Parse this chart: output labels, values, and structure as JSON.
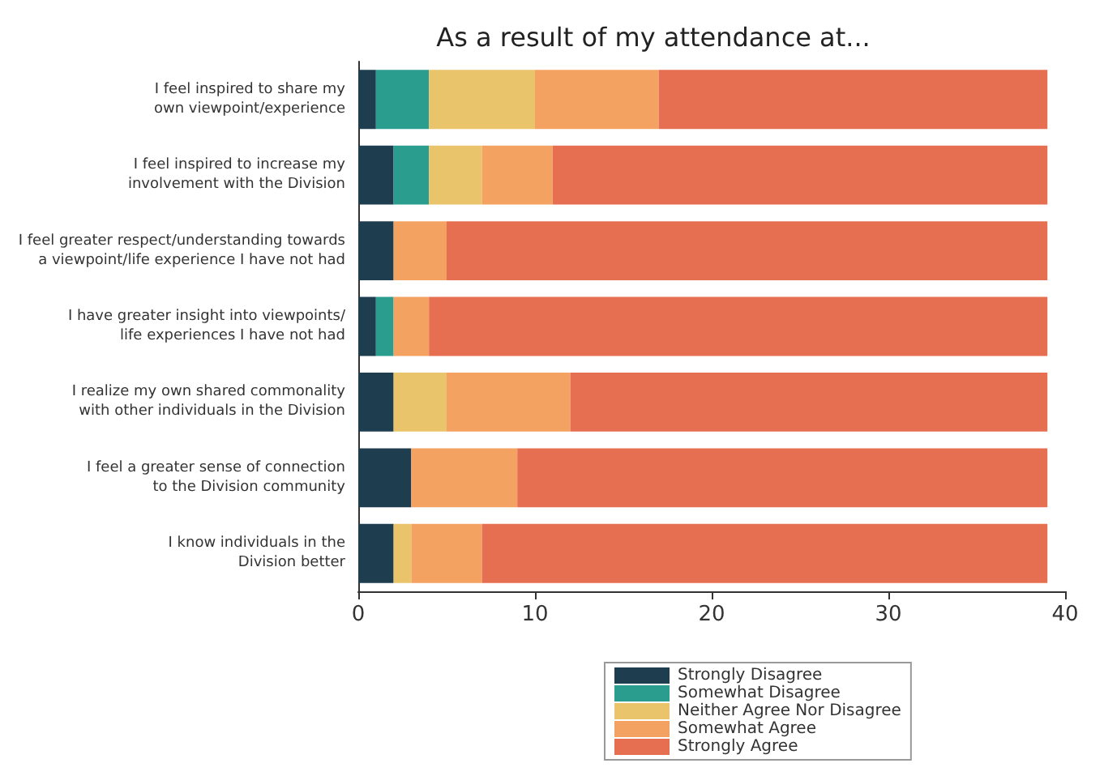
{
  "chart_data": {
    "type": "bar",
    "orientation": "horizontal",
    "stacked": true,
    "title": "As a result of my attendance at...",
    "categories": [
      "I feel inspired to share my\nown viewpoint/experience",
      "I feel inspired to increase my\ninvolvement with the Division",
      "I feel greater respect/understanding towards\na viewpoint/life experience I have not had",
      "I have greater insight into viewpoints/\nlife experiences I have not had",
      "I realize my own shared commonality\nwith other individuals in the Division",
      "I feel a greater sense of connection\nto the Division community",
      "I know individuals in the\nDivision better"
    ],
    "series": [
      {
        "name": "Strongly Disagree",
        "color": "#1e3d4f",
        "values": [
          1,
          2,
          2,
          1,
          2,
          3,
          2
        ]
      },
      {
        "name": "Somewhat Disagree",
        "color": "#2a9d8f",
        "values": [
          3,
          2,
          0,
          1,
          0,
          0,
          0
        ]
      },
      {
        "name": "Neither Agree Nor Disagree",
        "color": "#e9c46a",
        "values": [
          6,
          3,
          0,
          0,
          3,
          0,
          1
        ]
      },
      {
        "name": "Somewhat Agree",
        "color": "#f4a261",
        "values": [
          7,
          4,
          3,
          2,
          7,
          6,
          4
        ]
      },
      {
        "name": "Strongly Agree",
        "color": "#e76f51",
        "values": [
          22,
          28,
          34,
          35,
          27,
          30,
          32
        ]
      }
    ],
    "xlim": [
      0,
      40
    ],
    "xticks": [
      0,
      10,
      20,
      30,
      40
    ],
    "grid": false,
    "legend": "bottom"
  }
}
